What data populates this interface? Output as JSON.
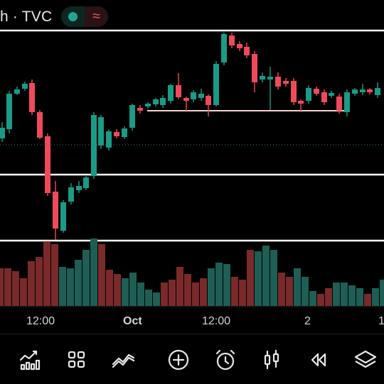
{
  "header": {
    "symbol_label": "h · TVC",
    "status_left_color": "#1fa891",
    "status_right_symbol": "≈",
    "status_right_color": "#f0566b"
  },
  "colors": {
    "up": "#1a9b86",
    "down": "#ef4a5b",
    "volume_up": "#1e5e55",
    "volume_down": "#7a2a2a",
    "border": "#ffffff",
    "ref_line": "#f7d4d4",
    "dotted_line": "#1e8f7e"
  },
  "time_axis": {
    "labels": [
      {
        "text": "12:00",
        "bold": false
      },
      {
        "text": "Oct",
        "bold": true
      },
      {
        "text": "12:00",
        "bold": false
      },
      {
        "text": "2",
        "bold": false
      },
      {
        "text": "1",
        "bold": false
      }
    ]
  },
  "toolbar": {
    "buttons": [
      {
        "name": "chart-type-button",
        "icon": "bar-chart-icon"
      },
      {
        "name": "indicators-button",
        "icon": "grid-icon"
      },
      {
        "name": "drawing-tools-button",
        "icon": "drawing-icon"
      },
      {
        "name": "add-button",
        "icon": "plus-circle-icon"
      },
      {
        "name": "alert-button",
        "icon": "alarm-clock-icon"
      },
      {
        "name": "candles-button",
        "icon": "candlestick-icon"
      },
      {
        "name": "replay-button",
        "icon": "rewind-icon"
      },
      {
        "name": "layers-button",
        "icon": "layers-icon"
      }
    ]
  }
}
